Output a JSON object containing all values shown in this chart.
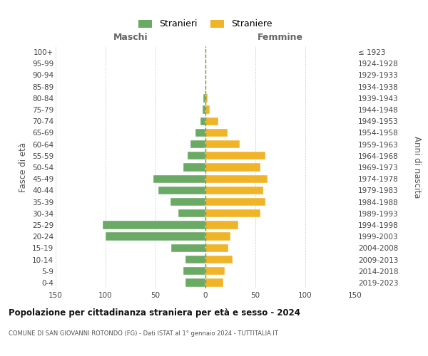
{
  "age_groups": [
    "0-4",
    "5-9",
    "10-14",
    "15-19",
    "20-24",
    "25-29",
    "30-34",
    "35-39",
    "40-44",
    "45-49",
    "50-54",
    "55-59",
    "60-64",
    "65-69",
    "70-74",
    "75-79",
    "80-84",
    "85-89",
    "90-94",
    "95-99",
    "100+"
  ],
  "birth_years": [
    "2019-2023",
    "2014-2018",
    "2009-2013",
    "2004-2008",
    "1999-2003",
    "1994-1998",
    "1989-1993",
    "1984-1988",
    "1979-1983",
    "1974-1978",
    "1969-1973",
    "1964-1968",
    "1959-1963",
    "1954-1958",
    "1949-1953",
    "1944-1948",
    "1939-1943",
    "1934-1938",
    "1929-1933",
    "1924-1928",
    "≤ 1923"
  ],
  "males": [
    20,
    22,
    20,
    34,
    100,
    103,
    27,
    35,
    47,
    52,
    22,
    18,
    15,
    10,
    5,
    3,
    2,
    0,
    0,
    0,
    0
  ],
  "females": [
    18,
    19,
    27,
    23,
    25,
    33,
    55,
    60,
    58,
    62,
    55,
    60,
    34,
    22,
    13,
    4,
    2,
    0,
    0,
    0,
    0
  ],
  "male_color": "#6aaa64",
  "female_color": "#f0b429",
  "title_main": "Popolazione per cittadinanza straniera per età e sesso - 2024",
  "title_sub": "COMUNE DI SAN GIOVANNI ROTONDO (FG) - Dati ISTAT al 1° gennaio 2024 - TUTTITALIA.IT",
  "header_left": "Maschi",
  "header_right": "Femmine",
  "ylabel_left": "Fasce di età",
  "ylabel_right": "Anni di nascita",
  "legend_male": "Stranieri",
  "legend_female": "Straniere",
  "xlim": 150,
  "background_color": "#ffffff",
  "grid_color": "#cccccc",
  "bar_height": 0.7
}
